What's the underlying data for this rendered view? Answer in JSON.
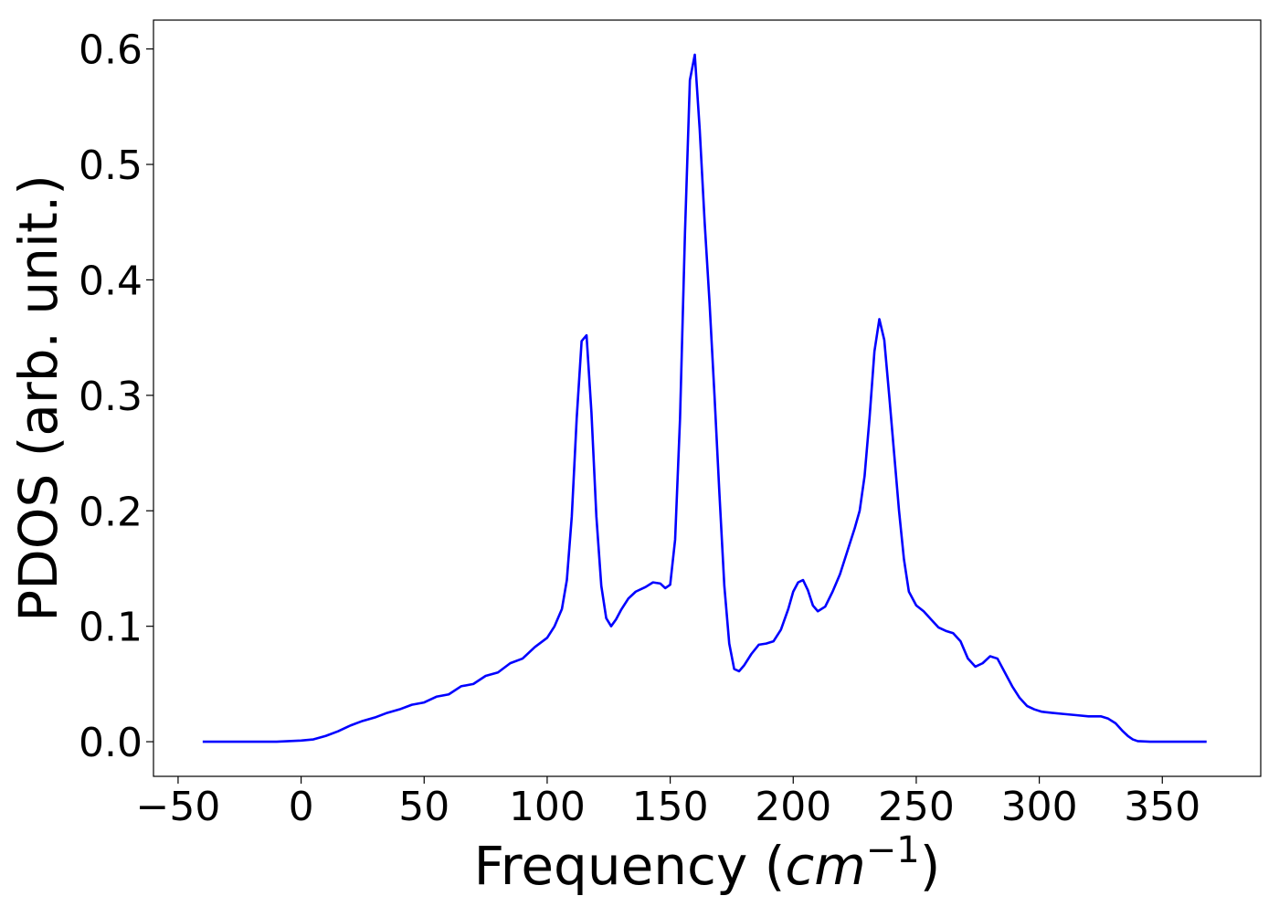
{
  "chart_data": {
    "type": "line",
    "title": "",
    "xlabel": "Frequency (",
    "xlabel_math": "cm",
    "xlabel_sup": "−1",
    "xlabel_close": ")",
    "ylabel": "PDOS (arb. unit.)",
    "xlim": [
      -60,
      390
    ],
    "ylim": [
      -0.03,
      0.625
    ],
    "xticks": [
      -50,
      0,
      50,
      100,
      150,
      200,
      250,
      300,
      350
    ],
    "xtick_labels": [
      "−50",
      "0",
      "50",
      "100",
      "150",
      "200",
      "250",
      "300",
      "350"
    ],
    "yticks": [
      0.0,
      0.1,
      0.2,
      0.3,
      0.4,
      0.5,
      0.6
    ],
    "ytick_labels": [
      "0.0",
      "0.1",
      "0.2",
      "0.3",
      "0.4",
      "0.5",
      "0.6"
    ],
    "grid": false,
    "series": [
      {
        "color": "#0000ff",
        "x": [
          -40,
          -20,
          -10,
          0,
          5,
          10,
          15,
          20,
          25,
          30,
          35,
          40,
          45,
          50,
          55,
          60,
          65,
          70,
          75,
          80,
          85,
          90,
          95,
          100,
          103,
          106,
          108,
          110,
          112,
          114,
          116,
          118,
          120,
          122,
          124,
          126,
          128,
          130,
          133,
          136,
          140,
          143,
          146,
          148,
          150,
          152,
          154,
          156,
          158,
          160,
          162,
          164,
          166,
          168,
          170,
          172,
          174,
          176,
          178,
          180,
          183,
          186,
          189,
          192,
          195,
          198,
          200,
          202,
          204,
          206,
          208,
          210,
          213,
          216,
          219,
          222,
          225,
          227,
          229,
          231,
          233,
          235,
          237,
          239,
          241,
          243,
          245,
          247,
          250,
          253,
          256,
          259,
          262,
          265,
          268,
          271,
          274,
          277,
          280,
          283,
          286,
          289,
          292,
          295,
          298,
          301,
          305,
          310,
          315,
          320,
          325,
          328,
          331,
          334,
          336,
          338,
          340,
          345,
          350,
          360,
          368
        ],
        "y": [
          0.0,
          0.0,
          0.0,
          0.001,
          0.002,
          0.005,
          0.009,
          0.014,
          0.018,
          0.021,
          0.025,
          0.028,
          0.032,
          0.034,
          0.039,
          0.041,
          0.048,
          0.05,
          0.057,
          0.06,
          0.068,
          0.072,
          0.082,
          0.09,
          0.1,
          0.115,
          0.14,
          0.195,
          0.28,
          0.347,
          0.352,
          0.285,
          0.195,
          0.135,
          0.107,
          0.1,
          0.106,
          0.114,
          0.124,
          0.13,
          0.134,
          0.138,
          0.137,
          0.133,
          0.136,
          0.175,
          0.28,
          0.44,
          0.573,
          0.595,
          0.53,
          0.45,
          0.38,
          0.3,
          0.215,
          0.135,
          0.085,
          0.063,
          0.061,
          0.066,
          0.076,
          0.084,
          0.085,
          0.087,
          0.097,
          0.115,
          0.13,
          0.138,
          0.14,
          0.131,
          0.118,
          0.113,
          0.117,
          0.13,
          0.145,
          0.165,
          0.185,
          0.2,
          0.23,
          0.28,
          0.338,
          0.366,
          0.348,
          0.3,
          0.25,
          0.2,
          0.158,
          0.13,
          0.118,
          0.113,
          0.106,
          0.099,
          0.096,
          0.094,
          0.087,
          0.072,
          0.065,
          0.068,
          0.074,
          0.072,
          0.06,
          0.048,
          0.038,
          0.031,
          0.028,
          0.026,
          0.025,
          0.024,
          0.023,
          0.022,
          0.022,
          0.02,
          0.016,
          0.009,
          0.005,
          0.002,
          0.0005,
          0.0,
          0.0,
          0.0,
          0.0
        ]
      }
    ]
  }
}
